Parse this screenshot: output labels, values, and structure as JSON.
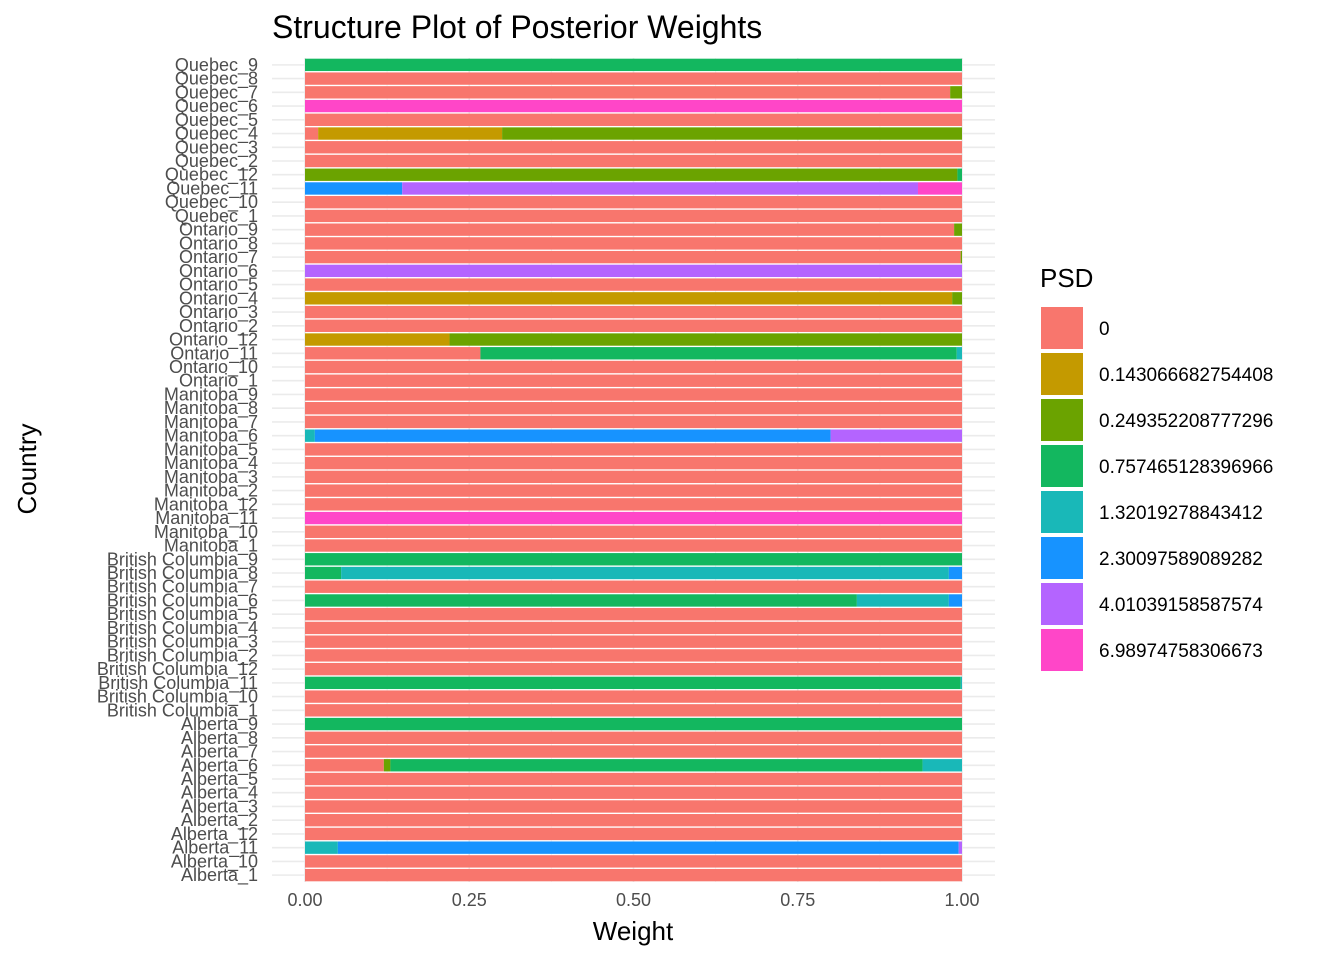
{
  "chart_data": {
    "type": "bar",
    "orientation": "horizontal",
    "stacked": true,
    "title": "Structure Plot of Posterior Weights",
    "xlabel": "Weight",
    "ylabel": "Country",
    "xlim": [
      0,
      1
    ],
    "x_ticks": [
      "0.00",
      "0.25",
      "0.50",
      "0.75",
      "1.00"
    ],
    "x_tick_values": [
      0,
      0.25,
      0.5,
      0.75,
      1
    ],
    "grid": true,
    "legend": {
      "title": "PSD",
      "position": "right",
      "entries": [
        {
          "label": "0",
          "color": "#F8766D"
        },
        {
          "label": "0.143066682754408",
          "color": "#C49A00"
        },
        {
          "label": "0.249352208777296",
          "color": "#53B400"
        },
        {
          "label": "0.757465128396966",
          "color": "#00C094"
        },
        {
          "label": "1.32019278843412",
          "color": "#00B6EB"
        },
        {
          "label": "2.30097589089282",
          "color": "#06A4FF"
        },
        {
          "label": "4.01039158587574",
          "color": "#A58AFF"
        },
        {
          "label": "6.98974758306673",
          "color": "#FB61D7"
        }
      ]
    },
    "colors": [
      "#F8766D",
      "#C49A00",
      "#6BA300",
      "#13B75F",
      "#19B8B8",
      "#1793FF",
      "#B464FF",
      "#FF46C8"
    ],
    "categories": [
      "Alberta_1",
      "Alberta_10",
      "Alberta_11",
      "Alberta_12",
      "Alberta_2",
      "Alberta_3",
      "Alberta_4",
      "Alberta_5",
      "Alberta_6",
      "Alberta_7",
      "Alberta_8",
      "Alberta_9",
      "British Columbia_1",
      "British Columbia_10",
      "British Columbia_11",
      "British Columbia_12",
      "British Columbia_2",
      "British Columbia_3",
      "British Columbia_4",
      "British Columbia_5",
      "British Columbia_6",
      "British Columbia_7",
      "British Columbia_8",
      "British Columbia_9",
      "Manitoba_1",
      "Manitoba_10",
      "Manitoba_11",
      "Manitoba_12",
      "Manitoba_2",
      "Manitoba_3",
      "Manitoba_4",
      "Manitoba_5",
      "Manitoba_6",
      "Manitoba_7",
      "Manitoba_8",
      "Manitoba_9",
      "Ontario_1",
      "Ontario_10",
      "Ontario_11",
      "Ontario_12",
      "Ontario_2",
      "Ontario_3",
      "Ontario_4",
      "Ontario_5",
      "Ontario_6",
      "Ontario_7",
      "Ontario_8",
      "Ontario_9",
      "Quebec_1",
      "Quebec_10",
      "Quebec_11",
      "Quebec_12",
      "Quebec_2",
      "Quebec_3",
      "Quebec_4",
      "Quebec_5",
      "Quebec_6",
      "Quebec_7",
      "Quebec_8",
      "Quebec_9"
    ],
    "weights": [
      [
        1,
        0,
        0,
        0,
        0,
        0,
        0,
        0
      ],
      [
        1,
        0,
        0,
        0,
        0,
        0,
        0,
        0
      ],
      [
        0,
        0,
        0,
        0,
        0.05,
        0.945,
        0.005,
        0
      ],
      [
        1,
        0,
        0,
        0,
        0,
        0,
        0,
        0
      ],
      [
        1,
        0,
        0,
        0,
        0,
        0,
        0,
        0
      ],
      [
        1,
        0,
        0,
        0,
        0,
        0,
        0,
        0
      ],
      [
        1,
        0,
        0,
        0,
        0,
        0,
        0,
        0
      ],
      [
        1,
        0,
        0,
        0,
        0,
        0,
        0,
        0
      ],
      [
        0.12,
        0,
        0.01,
        0.81,
        0.06,
        0,
        0,
        0
      ],
      [
        1,
        0,
        0,
        0,
        0,
        0,
        0,
        0
      ],
      [
        1,
        0,
        0,
        0,
        0,
        0,
        0,
        0
      ],
      [
        0,
        0,
        0,
        1,
        0,
        0,
        0,
        0
      ],
      [
        1,
        0,
        0,
        0,
        0,
        0,
        0,
        0
      ],
      [
        1,
        0,
        0,
        0,
        0,
        0,
        0,
        0
      ],
      [
        0,
        0,
        0,
        0.998,
        0.002,
        0,
        0,
        0
      ],
      [
        1,
        0,
        0,
        0,
        0,
        0,
        0,
        0
      ],
      [
        1,
        0,
        0,
        0,
        0,
        0,
        0,
        0
      ],
      [
        1,
        0,
        0,
        0,
        0,
        0,
        0,
        0
      ],
      [
        1,
        0,
        0,
        0,
        0,
        0,
        0,
        0
      ],
      [
        1,
        0,
        0,
        0,
        0,
        0,
        0,
        0
      ],
      [
        0,
        0,
        0,
        0.84,
        0.14,
        0.02,
        0,
        0
      ],
      [
        1,
        0,
        0,
        0,
        0,
        0,
        0,
        0
      ],
      [
        0,
        0,
        0,
        0.055,
        0.925,
        0.02,
        0,
        0
      ],
      [
        0,
        0,
        0,
        1,
        0,
        0,
        0,
        0
      ],
      [
        1,
        0,
        0,
        0,
        0,
        0,
        0,
        0
      ],
      [
        1,
        0,
        0,
        0,
        0,
        0,
        0,
        0
      ],
      [
        0,
        0,
        0,
        0,
        0,
        0,
        0,
        1
      ],
      [
        1,
        0,
        0,
        0,
        0,
        0,
        0,
        0
      ],
      [
        1,
        0,
        0,
        0,
        0,
        0,
        0,
        0
      ],
      [
        1,
        0,
        0,
        0,
        0,
        0,
        0,
        0
      ],
      [
        1,
        0,
        0,
        0,
        0,
        0,
        0,
        0
      ],
      [
        1,
        0,
        0,
        0,
        0,
        0,
        0,
        0
      ],
      [
        0,
        0,
        0,
        0,
        0.015,
        0.785,
        0.2,
        0
      ],
      [
        1,
        0,
        0,
        0,
        0,
        0,
        0,
        0
      ],
      [
        1,
        0,
        0,
        0,
        0,
        0,
        0,
        0
      ],
      [
        1,
        0,
        0,
        0,
        0,
        0,
        0,
        0
      ],
      [
        1,
        0,
        0,
        0,
        0,
        0,
        0,
        0
      ],
      [
        1,
        0,
        0,
        0,
        0,
        0,
        0,
        0
      ],
      [
        0.267,
        0,
        0,
        0.725,
        0.008,
        0,
        0,
        0
      ],
      [
        0,
        0.22,
        0.78,
        0,
        0,
        0,
        0,
        0
      ],
      [
        1,
        0,
        0,
        0,
        0,
        0,
        0,
        0
      ],
      [
        1,
        0,
        0,
        0,
        0,
        0,
        0,
        0
      ],
      [
        0,
        0.985,
        0.015,
        0,
        0,
        0,
        0,
        0
      ],
      [
        1,
        0,
        0,
        0,
        0,
        0,
        0,
        0
      ],
      [
        0,
        0,
        0,
        0,
        0,
        0,
        1,
        0
      ],
      [
        0.998,
        0,
        0.002,
        0,
        0,
        0,
        0,
        0
      ],
      [
        1,
        0,
        0,
        0,
        0,
        0,
        0,
        0
      ],
      [
        0.988,
        0,
        0.012,
        0,
        0,
        0,
        0,
        0
      ],
      [
        1,
        0,
        0,
        0,
        0,
        0,
        0,
        0
      ],
      [
        1,
        0,
        0,
        0,
        0,
        0,
        0,
        0
      ],
      [
        0,
        0,
        0,
        0,
        0,
        0.148,
        0.785,
        0.067
      ],
      [
        0,
        0,
        0.993,
        0.007,
        0,
        0,
        0,
        0
      ],
      [
        1,
        0,
        0,
        0,
        0,
        0,
        0,
        0
      ],
      [
        1,
        0,
        0,
        0,
        0,
        0,
        0,
        0
      ],
      [
        0.02,
        0.28,
        0.7,
        0,
        0,
        0,
        0,
        0
      ],
      [
        1,
        0,
        0,
        0,
        0,
        0,
        0,
        0
      ],
      [
        0,
        0,
        0,
        0,
        0,
        0,
        0,
        1
      ],
      [
        0.982,
        0,
        0.018,
        0,
        0,
        0,
        0,
        0
      ],
      [
        1,
        0,
        0,
        0,
        0,
        0,
        0,
        0
      ],
      [
        0,
        0,
        0,
        1,
        0,
        0,
        0,
        0
      ]
    ]
  }
}
